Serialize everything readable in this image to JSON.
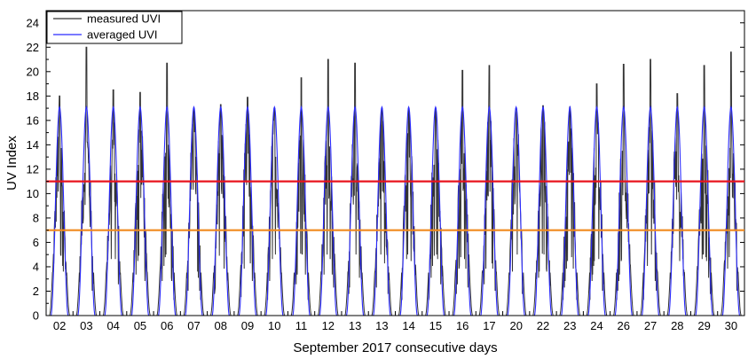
{
  "chart_data": {
    "type": "line",
    "title": "",
    "xlabel": "September 2017 consecutive days",
    "ylabel": "UV Index",
    "ylim": [
      0,
      25
    ],
    "yticks": [
      0,
      2,
      4,
      6,
      8,
      10,
      12,
      14,
      16,
      18,
      20,
      22,
      24
    ],
    "categories": [
      "02",
      "03",
      "04",
      "05",
      "06",
      "07",
      "08",
      "09",
      "10",
      "11",
      "12",
      "13",
      "13",
      "14",
      "15",
      "16",
      "17",
      "20",
      "22",
      "23",
      "24",
      "26",
      "27",
      "28",
      "29",
      "30"
    ],
    "series": [
      {
        "name": "measured UVI",
        "color": "#333333",
        "daily_peak": [
          18.0,
          22.0,
          18.5,
          18.3,
          20.7,
          17.0,
          17.3,
          17.9,
          17.0,
          19.5,
          21.0,
          20.7,
          17.0,
          17.0,
          17.0,
          20.1,
          20.5,
          17.0,
          17.2,
          17.1,
          19.0,
          20.6,
          21.0,
          18.2,
          20.5,
          21.6
        ]
      },
      {
        "name": "averaged UVI",
        "color": "#2a2aff",
        "daily_peak": [
          17.1,
          17.1,
          17.1,
          17.1,
          17.1,
          17.1,
          17.1,
          17.1,
          17.1,
          17.1,
          17.1,
          17.1,
          17.1,
          17.1,
          17.1,
          17.1,
          17.1,
          17.1,
          17.1,
          17.1,
          17.1,
          17.1,
          17.1,
          17.1,
          17.1,
          17.1
        ]
      }
    ],
    "reference_lines": [
      {
        "y": 11,
        "color": "#e8141e"
      },
      {
        "y": 7,
        "color": "#f08a1e"
      }
    ],
    "legend_position": "top-left",
    "grid": false
  }
}
